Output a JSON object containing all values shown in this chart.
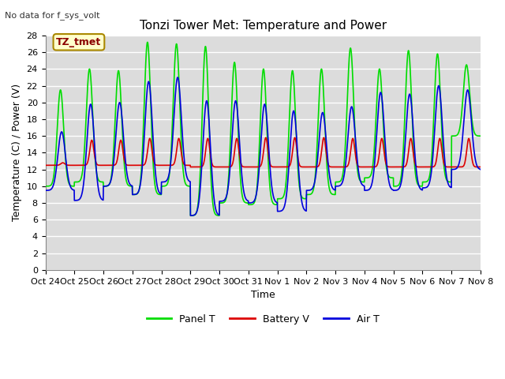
{
  "title": "Tonzi Tower Met: Temperature and Power",
  "ylabel": "Temperature (C) / Power (V)",
  "xlabel": "Time",
  "no_data_text": "No data for f_sys_volt",
  "tz_label": "TZ_tmet",
  "ylim": [
    0,
    28
  ],
  "yticks": [
    0,
    2,
    4,
    6,
    8,
    10,
    12,
    14,
    16,
    18,
    20,
    22,
    24,
    26,
    28
  ],
  "xtick_labels": [
    "Oct 24",
    "Oct 25",
    "Oct 26",
    "Oct 27",
    "Oct 28",
    "Oct 29",
    "Oct 30",
    "Oct 31",
    "Nov 1",
    "Nov 2",
    "Nov 3",
    "Nov 4",
    "Nov 5",
    "Nov 6",
    "Nov 7",
    "Nov 8"
  ],
  "colors": {
    "panel_t": "#00dd00",
    "battery_v": "#dd0000",
    "air_t": "#0000dd",
    "plot_bg": "#dcdcdc",
    "fig_bg": "#ffffff",
    "grid": "#ffffff"
  },
  "legend_labels": [
    "Panel T",
    "Battery V",
    "Air T"
  ],
  "num_days": 15,
  "panel_peak_values": [
    21.5,
    24.0,
    23.8,
    27.2,
    27.0,
    26.7,
    24.8,
    24.0,
    23.8,
    24.0,
    26.5,
    24.0,
    26.2,
    25.8,
    24.5
  ],
  "panel_min_values": [
    10.0,
    10.5,
    10.0,
    9.0,
    10.0,
    6.5,
    8.0,
    7.8,
    8.5,
    9.0,
    10.5,
    11.0,
    10.0,
    10.5,
    16.0
  ],
  "battery_peak_values": [
    12.8,
    15.5,
    15.5,
    15.7,
    15.7,
    15.7,
    15.7,
    15.8,
    15.8,
    15.8,
    15.7,
    15.7,
    15.7,
    15.7,
    15.7
  ],
  "battery_min_values": [
    12.5,
    12.5,
    12.5,
    12.5,
    12.5,
    12.3,
    12.3,
    12.3,
    12.3,
    12.3,
    12.3,
    12.3,
    12.3,
    12.3,
    12.3
  ],
  "air_peak_values": [
    16.5,
    19.8,
    20.0,
    22.5,
    23.0,
    20.2,
    20.2,
    19.8,
    19.0,
    18.8,
    19.5,
    21.2,
    21.0,
    22.0,
    21.5
  ],
  "air_min_values": [
    9.5,
    8.3,
    10.0,
    9.0,
    10.5,
    6.5,
    8.2,
    8.0,
    7.0,
    9.5,
    10.0,
    9.5,
    9.5,
    9.8,
    12.0
  ],
  "figsize": [
    6.4,
    4.8
  ],
  "dpi": 100,
  "title_fontsize": 11,
  "label_fontsize": 9,
  "tick_fontsize": 8,
  "linewidth": 1.2
}
